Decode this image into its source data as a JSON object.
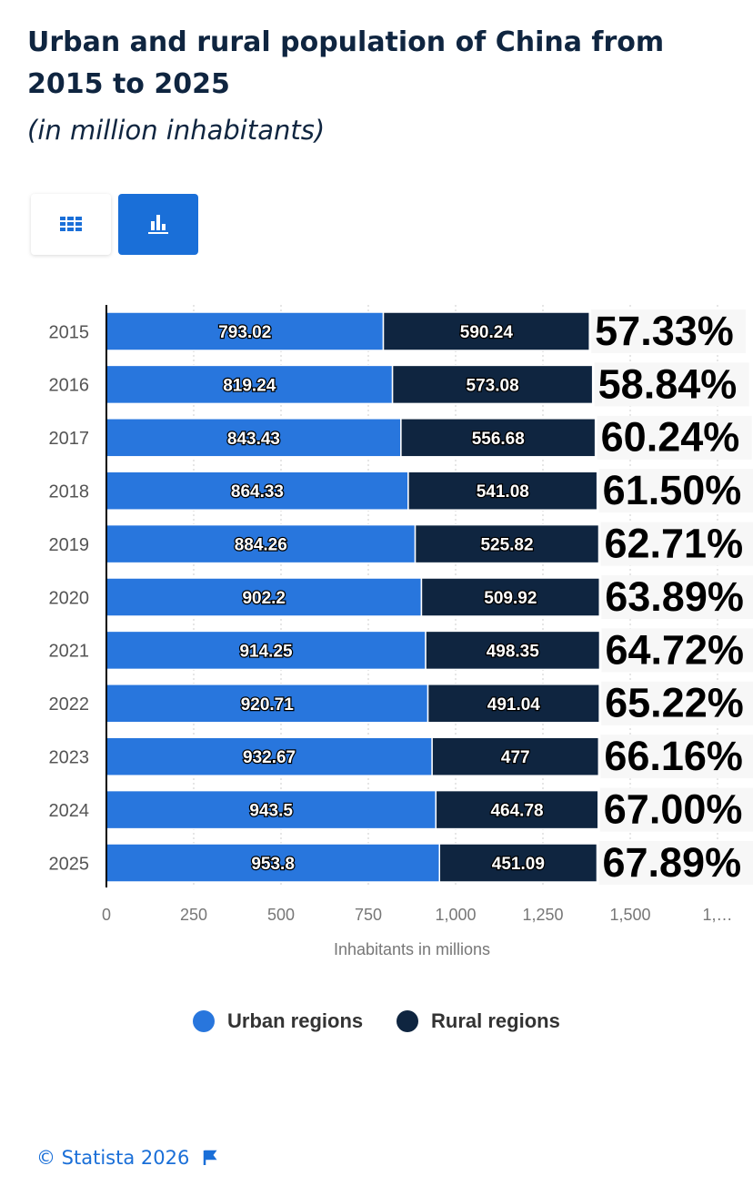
{
  "chart_data": {
    "type": "stacked-bar",
    "orientation": "horizontal",
    "title": "Urban and rural population of China from 2015 to 2025",
    "subtitle": "(in million inhabitants)",
    "x_label": "Inhabitants in millions",
    "categories": [
      "2015",
      "2016",
      "2017",
      "2018",
      "2019",
      "2020",
      "2021",
      "2022",
      "2023",
      "2024",
      "2025"
    ],
    "series": [
      {
        "name": "Urban regions",
        "color": "#2876dd",
        "values": [
          793.02,
          819.24,
          843.43,
          864.33,
          884.26,
          902.2,
          914.25,
          920.71,
          932.67,
          943.5,
          953.8
        ]
      },
      {
        "name": "Rural regions",
        "color": "#0f2540",
        "values": [
          590.24,
          573.08,
          556.68,
          541.08,
          525.82,
          509.92,
          498.35,
          491.04,
          477,
          464.78,
          451.09
        ]
      }
    ],
    "annotations": [
      "57.33%",
      "58.84%",
      "60.24%",
      "61.50%",
      "62.71%",
      "63.89%",
      "64.72%",
      "65.22%",
      "66.16%",
      "67.00%",
      "67.89%"
    ],
    "xlim": [
      0,
      1750
    ],
    "xticks": [
      0,
      250,
      500,
      750,
      {
        "value": 1000,
        "label": "1,000"
      },
      {
        "value": 1250,
        "label": "1,250"
      },
      {
        "value": 1500,
        "label": "1,500"
      },
      {
        "value": 1750,
        "label": "1,…"
      }
    ],
    "grid": true,
    "legend": "bottom",
    "footer": "© Statista 2026"
  }
}
